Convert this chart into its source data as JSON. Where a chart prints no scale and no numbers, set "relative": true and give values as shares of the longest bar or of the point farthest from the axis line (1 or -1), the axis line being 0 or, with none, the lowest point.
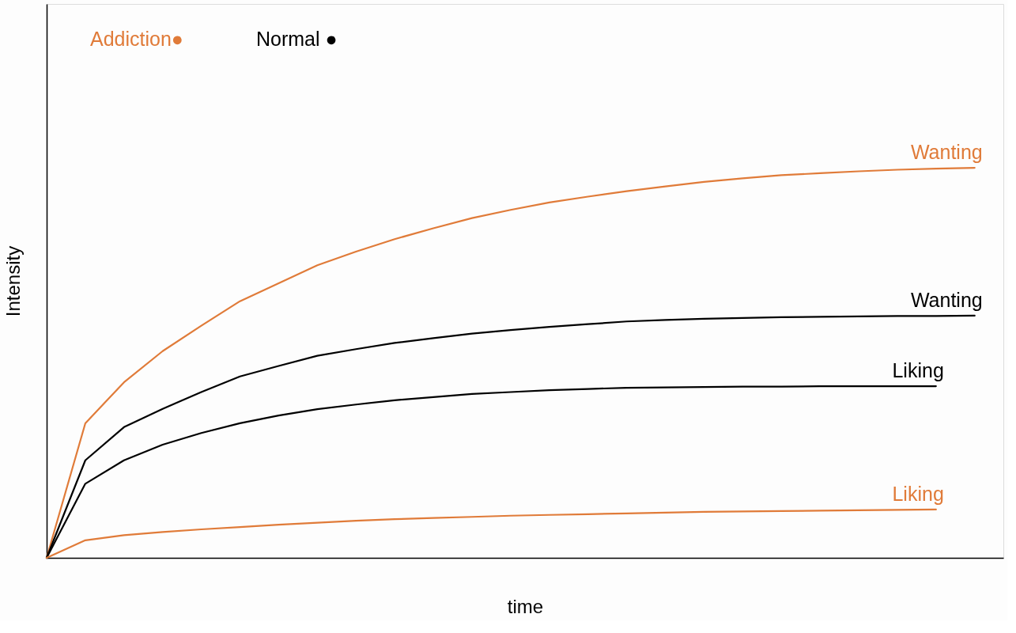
{
  "chart_data": {
    "type": "line",
    "relative": true,
    "xlabel": "time",
    "ylabel": "Intensity",
    "tick_labels": false,
    "grid": false,
    "annotations": [
      "Addiction●",
      "Normal ●"
    ],
    "categories": [
      null,
      null,
      null,
      null,
      null,
      null,
      null,
      null,
      null,
      null,
      null,
      null,
      null,
      null,
      null,
      null,
      null,
      null,
      null,
      null,
      null,
      null,
      null,
      null,
      null
    ],
    "series": [
      {
        "name": "Wanting",
        "color": "#e07b39",
        "values": [
          0,
          0.345,
          0.45,
          0.53,
          0.595,
          0.658,
          0.704,
          0.75,
          0.785,
          0.817,
          0.845,
          0.871,
          0.892,
          0.911,
          0.926,
          0.94,
          0.952,
          0.964,
          0.973,
          0.981,
          0.986,
          0.991,
          0.995,
          0.998,
          1
        ]
      },
      {
        "name": "Wanting",
        "color": "#000000",
        "values": [
          0,
          0.25,
          0.335,
          0.382,
          0.425,
          0.465,
          0.492,
          0.518,
          0.535,
          0.551,
          0.563,
          0.575,
          0.584,
          0.592,
          0.599,
          0.606,
          0.61,
          0.613,
          0.615,
          0.617,
          0.618,
          0.619,
          0.62,
          0.62,
          0.621
        ]
      },
      {
        "name": "Liking",
        "color": "#000000",
        "values": [
          0,
          0.19,
          0.25,
          0.29,
          0.32,
          0.345,
          0.365,
          0.381,
          0.393,
          0.404,
          0.412,
          0.42,
          0.425,
          0.43,
          0.433,
          0.436,
          0.437,
          0.438,
          0.439,
          0.439,
          0.44,
          0.44,
          0.44,
          0.44,
          null
        ]
      },
      {
        "name": "Liking",
        "color": "#e07b39",
        "values": [
          0,
          0.045,
          0.058,
          0.066,
          0.073,
          0.079,
          0.085,
          0.09,
          0.095,
          0.099,
          0.102,
          0.105,
          0.108,
          0.11,
          0.112,
          0.114,
          0.116,
          0.118,
          0.119,
          0.12,
          0.121,
          0.122,
          0.123,
          0.124,
          null
        ]
      }
    ]
  }
}
